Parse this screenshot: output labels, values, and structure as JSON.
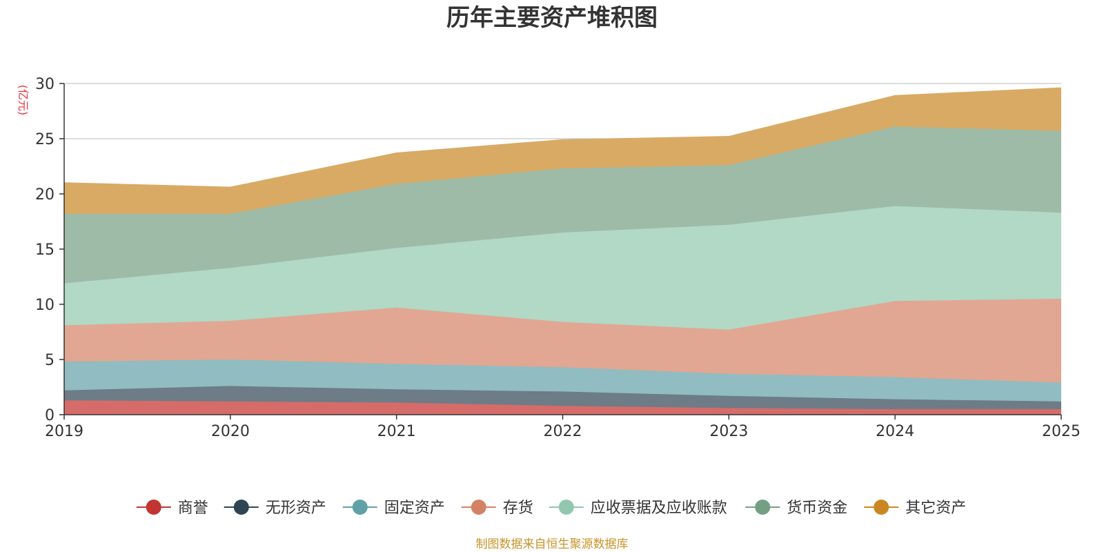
{
  "chart_data": {
    "type": "area",
    "stacked": true,
    "title": "历年主要资产堆积图",
    "ylabel": "(亿元)",
    "xlabel": "",
    "categories": [
      "2019",
      "2020",
      "2021",
      "2022",
      "2023",
      "2024",
      "2025"
    ],
    "y_ticks": [
      "0",
      "5",
      "10",
      "15",
      "20",
      "25",
      "30"
    ],
    "ylim": [
      0,
      30
    ],
    "grid": true,
    "legend_position": "bottom",
    "series": [
      {
        "name": "商誉",
        "color": "#c23531",
        "fill": "#d56c6a",
        "values": [
          1.3,
          1.2,
          1.1,
          0.8,
          0.6,
          0.5,
          0.5
        ]
      },
      {
        "name": "无形资产",
        "color": "#2f4554",
        "fill": "#6d7c86",
        "values": [
          0.9,
          1.4,
          1.2,
          1.3,
          1.1,
          0.9,
          0.7
        ]
      },
      {
        "name": "固定资产",
        "color": "#61a0a8",
        "fill": "#90bcc2",
        "values": [
          2.6,
          2.4,
          2.3,
          2.2,
          2.0,
          2.0,
          1.7
        ]
      },
      {
        "name": "存货",
        "color": "#d48265",
        "fill": "#e1a792",
        "values": [
          3.3,
          3.5,
          5.1,
          4.1,
          4.0,
          6.9,
          7.6
        ]
      },
      {
        "name": "应收票据及应收账款",
        "color": "#91c7ae",
        "fill": "#b2d8c6",
        "values": [
          3.8,
          4.8,
          5.4,
          8.1,
          9.5,
          8.6,
          7.8
        ]
      },
      {
        "name": "货币资金",
        "color": "#749f83",
        "fill": "#9ebba8",
        "values": [
          6.3,
          4.9,
          5.8,
          5.8,
          5.4,
          7.2,
          7.4
        ]
      },
      {
        "name": "其它资产",
        "color": "#ca8622",
        "fill": "#d8aa64",
        "values": [
          2.8,
          2.4,
          2.8,
          2.6,
          2.6,
          2.8,
          3.9
        ]
      }
    ]
  },
  "footer": {
    "source": "制图数据来自恒生聚源数据库"
  }
}
